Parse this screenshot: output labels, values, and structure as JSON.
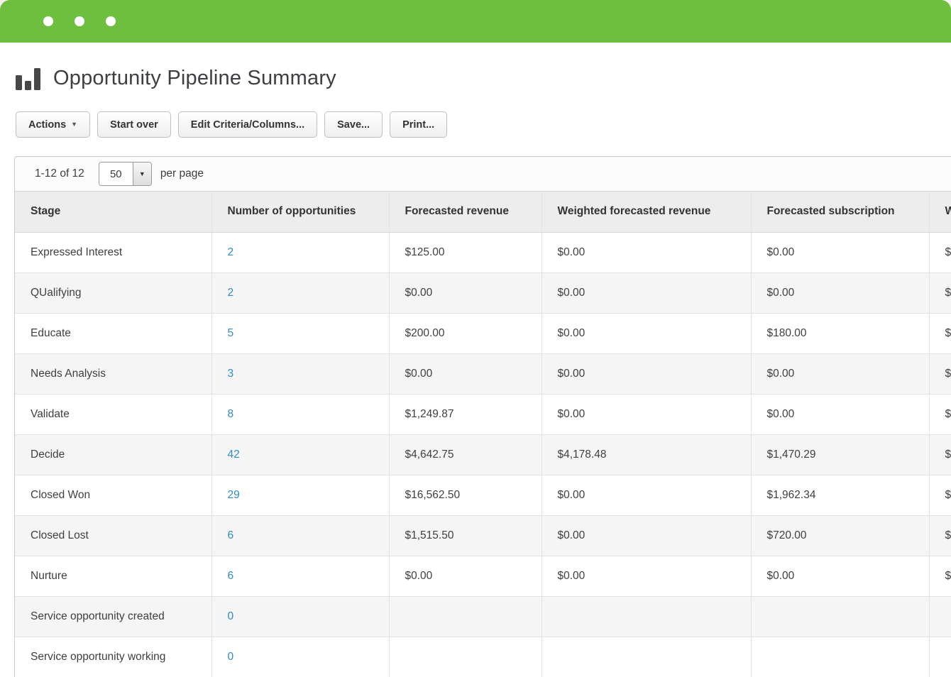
{
  "colors": {
    "brand_green": "#6ebe3f",
    "link_blue": "#2e8bc5",
    "header_gray": "#ededed"
  },
  "titlebar": {
    "dot_count": 3
  },
  "page": {
    "title": "Opportunity Pipeline Summary",
    "icon": "bar-chart-icon"
  },
  "toolbar": {
    "actions_label": "Actions",
    "actions_caret": "▼",
    "start_over_label": "Start over",
    "edit_criteria_label": "Edit Criteria/Columns...",
    "save_label": "Save...",
    "print_label": "Print..."
  },
  "pagination": {
    "range_text": "1-12 of 12",
    "page_size": "50",
    "dropdown_arrow": "▼",
    "per_page_label": "per page"
  },
  "table": {
    "columns": [
      "Stage",
      "Number of opportunities",
      "Forecasted revenue",
      "Weighted forecasted revenue",
      "Forecasted subscription",
      "W"
    ],
    "rows": [
      {
        "stage": "Expressed Interest",
        "opportunities": "2",
        "forecasted_revenue": "$125.00",
        "weighted_forecasted_revenue": "$0.00",
        "forecasted_subscription": "$0.00",
        "overflow": "$"
      },
      {
        "stage": "QUalifying",
        "opportunities": "2",
        "forecasted_revenue": "$0.00",
        "weighted_forecasted_revenue": "$0.00",
        "forecasted_subscription": "$0.00",
        "overflow": "$"
      },
      {
        "stage": "Educate",
        "opportunities": "5",
        "forecasted_revenue": "$200.00",
        "weighted_forecasted_revenue": "$0.00",
        "forecasted_subscription": "$180.00",
        "overflow": "$"
      },
      {
        "stage": "Needs Analysis",
        "opportunities": "3",
        "forecasted_revenue": "$0.00",
        "weighted_forecasted_revenue": "$0.00",
        "forecasted_subscription": "$0.00",
        "overflow": "$"
      },
      {
        "stage": "Validate",
        "opportunities": "8",
        "forecasted_revenue": "$1,249.87",
        "weighted_forecasted_revenue": "$0.00",
        "forecasted_subscription": "$0.00",
        "overflow": "$"
      },
      {
        "stage": "Decide",
        "opportunities": "42",
        "forecasted_revenue": "$4,642.75",
        "weighted_forecasted_revenue": "$4,178.48",
        "forecasted_subscription": "$1,470.29",
        "overflow": "$"
      },
      {
        "stage": "Closed Won",
        "opportunities": "29",
        "forecasted_revenue": "$16,562.50",
        "weighted_forecasted_revenue": "$0.00",
        "forecasted_subscription": "$1,962.34",
        "overflow": "$"
      },
      {
        "stage": "Closed Lost",
        "opportunities": "6",
        "forecasted_revenue": "$1,515.50",
        "weighted_forecasted_revenue": "$0.00",
        "forecasted_subscription": "$720.00",
        "overflow": "$"
      },
      {
        "stage": "Nurture",
        "opportunities": "6",
        "forecasted_revenue": "$0.00",
        "weighted_forecasted_revenue": "$0.00",
        "forecasted_subscription": "$0.00",
        "overflow": "$"
      },
      {
        "stage": "Service opportunity created",
        "opportunities": "0",
        "forecasted_revenue": "",
        "weighted_forecasted_revenue": "",
        "forecasted_subscription": "",
        "overflow": ""
      },
      {
        "stage": "Service opportunity working",
        "opportunities": "0",
        "forecasted_revenue": "",
        "weighted_forecasted_revenue": "",
        "forecasted_subscription": "",
        "overflow": ""
      }
    ]
  }
}
